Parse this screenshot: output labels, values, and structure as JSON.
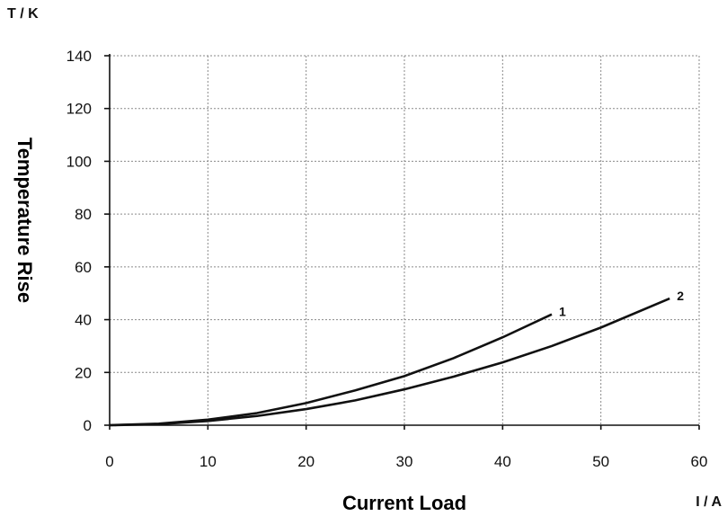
{
  "chart_data": {
    "type": "line",
    "xlabel": "Current Load",
    "ylabel": "Temperature Rise",
    "x_unit": "I / A",
    "y_unit": "T / K",
    "xlim": [
      0,
      60
    ],
    "ylim": [
      0,
      140
    ],
    "x_ticks": [
      0,
      10,
      20,
      30,
      40,
      50,
      60
    ],
    "y_ticks": [
      0,
      20,
      40,
      60,
      80,
      100,
      120,
      140
    ],
    "grid": true,
    "series": [
      {
        "name": "1",
        "x": [
          0,
          5,
          10,
          15,
          20,
          25,
          30,
          35,
          40,
          45
        ],
        "y": [
          0,
          0.6,
          2.1,
          4.6,
          8.4,
          13.2,
          18.6,
          25.4,
          33.3,
          42
        ]
      },
      {
        "name": "2",
        "x": [
          0,
          5,
          10,
          15,
          20,
          25,
          30,
          35,
          40,
          45,
          50,
          57
        ],
        "y": [
          0,
          0.4,
          1.6,
          3.5,
          6.1,
          9.4,
          13.6,
          18.4,
          23.8,
          30,
          37,
          48
        ]
      }
    ]
  }
}
